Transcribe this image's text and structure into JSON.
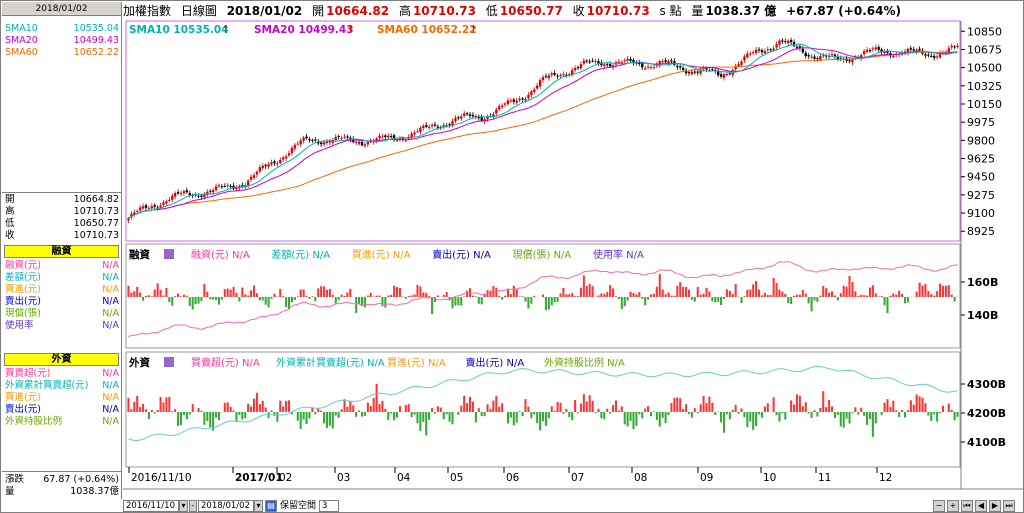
{
  "left_panel": {
    "date": "2018/01/02",
    "sma": [
      {
        "label": "SMA10",
        "value": "10535.04",
        "color": "#00b3b3"
      },
      {
        "label": "SMA20",
        "value": "10499.43",
        "color": "#cc00cc"
      },
      {
        "label": "SMA60",
        "value": "10652.22",
        "color": "#ff6600"
      }
    ],
    "ohlc": [
      {
        "label": "開",
        "value": "10664.82"
      },
      {
        "label": "高",
        "value": "10710.73"
      },
      {
        "label": "低",
        "value": "10650.77"
      },
      {
        "label": "收",
        "value": "10710.73"
      }
    ],
    "margin_title": "融資",
    "margin_rows": [
      {
        "label": "融資(元)",
        "value": "N/A",
        "color": "#ff3399"
      },
      {
        "label": "差額(元)",
        "value": "N/A",
        "color": "#00b3b3"
      },
      {
        "label": "買進(元)",
        "value": "N/A",
        "color": "#ff9900"
      },
      {
        "label": "賣出(元)",
        "value": "N/A",
        "color": "#0000cc"
      },
      {
        "label": "現償(張)",
        "value": "N/A",
        "color": "#66aa00"
      },
      {
        "label": "使用率",
        "value": "N/A",
        "color": "#6633cc"
      }
    ],
    "foreign_title": "外資",
    "foreign_rows": [
      {
        "label": "買賣超(元)",
        "value": "N/A",
        "color": "#ff3399"
      },
      {
        "label": "外資累計買賣超(元)",
        "value": "N/A",
        "color": "#00b3b3"
      },
      {
        "label": "買進(元)",
        "value": "N/A",
        "color": "#ff9900"
      },
      {
        "label": "賣出(元)",
        "value": "N/A",
        "color": "#0000cc"
      },
      {
        "label": "外資持股比例",
        "value": "N/A",
        "color": "#66aa00"
      }
    ],
    "change_label": "漲跌",
    "change_value": "67.87 (+0.64%)",
    "volume_label": "量",
    "volume_value": "1038.37億"
  },
  "header": {
    "index_name": "加權指數",
    "period": "日線圖",
    "date": "2018/01/02",
    "open_label": "開",
    "open": "10664.82",
    "high_label": "高",
    "high": "10710.73",
    "low_label": "低",
    "low": "10650.77",
    "close_label": "收",
    "close": "10710.73",
    "unit": "s 點",
    "volume_label": "量",
    "volume": "1038.37 億",
    "change": "+67.87 (+0.64%)"
  },
  "price_legend": [
    {
      "label": "SMA10 10535.04",
      "color": "#00b3b3"
    },
    {
      "label": "SMA20 10499.43",
      "color": "#cc00cc"
    },
    {
      "label": "SMA60 10652.22",
      "color": "#ff6600"
    }
  ],
  "margin_legend": {
    "title": "融資",
    "items": [
      {
        "label": "融資(元) N/A",
        "color": "#ff3399"
      },
      {
        "label": "差額(元) N/A",
        "color": "#00b3b3"
      },
      {
        "label": "買進(元) N/A",
        "color": "#ff9900"
      },
      {
        "label": "賣出(元) N/A",
        "color": "#0000cc"
      },
      {
        "label": "現償(張) N/A",
        "color": "#66aa00"
      },
      {
        "label": "使用率 N/A",
        "color": "#6633cc"
      }
    ]
  },
  "foreign_legend": {
    "title": "外資",
    "items": [
      {
        "label": "買賣超(元) N/A",
        "color": "#ff3399"
      },
      {
        "label": "外資累計買賣超(元) N/A",
        "color": "#00b3b3"
      },
      {
        "label": "買進(元) N/A",
        "color": "#ff9900"
      },
      {
        "label": "賣出(元) N/A",
        "color": "#0000cc"
      },
      {
        "label": "外資持股比例 N/A",
        "color": "#66aa00"
      }
    ]
  },
  "bottom_bar": {
    "start_date": "2016/11/10",
    "end_date": "2018/01/02",
    "keep_space_label": "保留空間",
    "keep_space_value": "3"
  },
  "colors": {
    "up": "#e00000",
    "down": "#006600",
    "pos_bar": "#ff3333",
    "neg_bar": "#33aa33",
    "sma10": "#00b3b3",
    "sma20": "#cc00cc",
    "sma60": "#ff6600",
    "margin_line": "#ff66aa",
    "foreign_line": "#66cccc",
    "frame": "#cc66ff"
  },
  "chart_data": {
    "type": "candlestick",
    "x_tick_labels": [
      "2016/11/10",
      "2017/01",
      "02",
      "03",
      "04",
      "05",
      "06",
      "07",
      "08",
      "09",
      "10",
      "11",
      "12"
    ],
    "x_tick_month_index": [
      0,
      1.7,
      2.7,
      3.7,
      4.7,
      5.7,
      6.7,
      7.7,
      8.7,
      9.7,
      10.7,
      11.7,
      12.7
    ],
    "price_axis": {
      "ticks": [
        8925,
        9100,
        9275,
        9450,
        9625,
        9800,
        9975,
        10150,
        10325,
        10500,
        10675,
        10850
      ],
      "ylim": [
        8860,
        10920
      ]
    },
    "price_close_monthly": [
      {
        "month": "2016/11",
        "close": 9050
      },
      {
        "month": "2016/12",
        "close": 9260
      },
      {
        "month": "2017/01",
        "close": 9450
      },
      {
        "month": "2017/02",
        "close": 9750
      },
      {
        "month": "2017/03",
        "close": 9840
      },
      {
        "month": "2017/04",
        "close": 9870
      },
      {
        "month": "2017/05",
        "close": 10040
      },
      {
        "month": "2017/06",
        "close": 10390
      },
      {
        "month": "2017/07",
        "close": 10520
      },
      {
        "month": "2017/08",
        "close": 10590
      },
      {
        "month": "2017/09",
        "close": 10380
      },
      {
        "month": "2017/10",
        "close": 10790
      },
      {
        "month": "2017/11",
        "close": 10560
      },
      {
        "month": "2017/12",
        "close": 10640
      },
      {
        "month": "2018/01/02",
        "close": 10710.73
      }
    ],
    "margin_axis": {
      "ticks": [
        "160B",
        "140B"
      ],
      "values": [
        160,
        140
      ]
    },
    "foreign_axis": {
      "ticks": [
        "4300B",
        "4200B",
        "4100B"
      ],
      "values": [
        4300,
        4200,
        4100
      ]
    }
  }
}
